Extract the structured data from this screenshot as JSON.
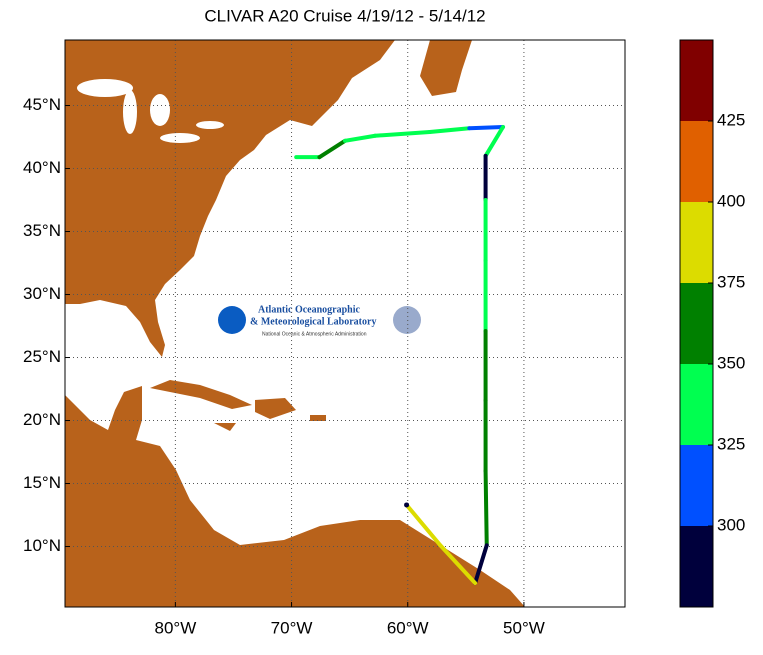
{
  "chart_data": {
    "type": "map",
    "title": "CLIVAR A20 Cruise 4/19/12 - 5/14/12",
    "xlim": [
      -89.5,
      -41.3
    ],
    "ylim": [
      5.2,
      50.2
    ],
    "xticks": [
      {
        "value": -80,
        "label": "80°W"
      },
      {
        "value": -70,
        "label": "70°W"
      },
      {
        "value": -60,
        "label": "60°W"
      },
      {
        "value": -50,
        "label": "50°W"
      }
    ],
    "yticks": [
      {
        "value": 10,
        "label": "10°N"
      },
      {
        "value": 15,
        "label": "15°N"
      },
      {
        "value": 20,
        "label": "20°N"
      },
      {
        "value": 25,
        "label": "25°N"
      },
      {
        "value": 30,
        "label": "30°N"
      },
      {
        "value": 35,
        "label": "35°N"
      },
      {
        "value": 40,
        "label": "40°N"
      },
      {
        "value": 45,
        "label": "45°N"
      }
    ],
    "grid": true,
    "colorbar": {
      "clim": [
        275,
        450
      ],
      "ticks": [
        300,
        325,
        350,
        375,
        400,
        425
      ],
      "colors": [
        "#00003c",
        "#0050ff",
        "#00ff50",
        "#008000",
        "#dcdc00",
        "#e06000",
        "#800000"
      ]
    },
    "track": {
      "lon": [
        -69.6,
        -67.6,
        -65.4,
        -62.8,
        -58.1,
        -54.7,
        -51.8,
        -53.3,
        -53.3,
        -53.3,
        -53.3,
        -53.3,
        -53.3,
        -53.2,
        -54.2,
        -57.2,
        -60.1
      ],
      "lat": [
        40.9,
        40.9,
        42.2,
        42.6,
        42.9,
        43.2,
        43.3,
        41.0,
        37.5,
        32.7,
        27.1,
        21.6,
        16.0,
        10.1,
        7.1,
        10.1,
        13.3
      ],
      "values": [
        340,
        360,
        330,
        335,
        330,
        310,
        330,
        290,
        330,
        330,
        360,
        360,
        360,
        290,
        385,
        385,
        290
      ]
    }
  },
  "logo": {
    "line1": "Atlantic Oceanographic",
    "line2": "& Meteorological Laboratory",
    "line3": "National Oceanic & Atmospheric Administration"
  }
}
